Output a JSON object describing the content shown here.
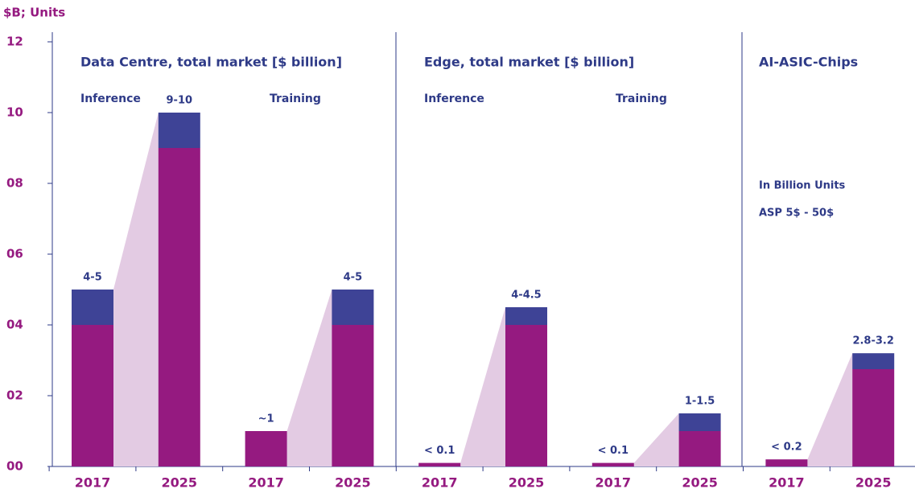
{
  "chart_data": {
    "type": "stacked_bar",
    "y_label": "$B; Units",
    "panels": [
      "Data Centre, total market [$ billion]",
      "Edge, total market [$ billion]",
      "AI-ASIC-Chips"
    ],
    "subgroups": [
      "Inference",
      "Training",
      "Inference",
      "Training"
    ],
    "annotations": [
      "In Billion Units",
      "ASP 5$ - 50$"
    ],
    "categories": [
      "2017",
      "2025",
      "2017",
      "2025",
      "2017",
      "2025",
      "2017",
      "2025",
      "2017",
      "2025"
    ],
    "series": [
      {
        "color": "#951a80",
        "values": [
          4,
          9,
          1,
          4,
          0.1,
          4,
          0.1,
          1,
          0.2,
          2.75
        ]
      },
      {
        "color": "#3e4396",
        "values": [
          1,
          1,
          0,
          1,
          0,
          0.5,
          0,
          0.5,
          0,
          0.45
        ]
      }
    ],
    "bar_labels": [
      "4-5",
      "9-10",
      "~1",
      "4-5",
      "< 0.1",
      "4-4.5",
      "< 0.1",
      "1-1.5",
      "< 0.2",
      "2.8-3.2"
    ],
    "connector_color": "#e3cbe3",
    "ylim": [
      0,
      12
    ],
    "yticks": [
      {
        "value": 0,
        "label": "00"
      },
      {
        "value": 2,
        "label": "02"
      },
      {
        "value": 4,
        "label": "04"
      },
      {
        "value": 6,
        "label": "06"
      },
      {
        "value": 8,
        "label": "08"
      },
      10,
      12
    ]
  }
}
